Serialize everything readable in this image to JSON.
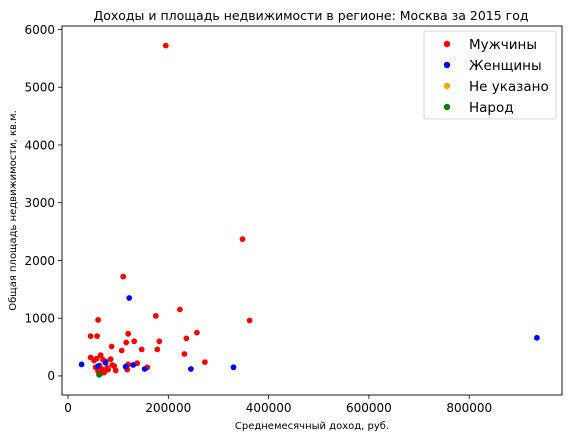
{
  "chart_data": {
    "type": "scatter",
    "title": "Доходы и площадь недвижимости в регионе: Москва за 2015 год",
    "xlabel": "Среднемесячный доход, руб.",
    "ylabel": "Общая площадь недвижимости, кв.м.",
    "xlim": [
      -12000,
      985000
    ],
    "ylim": [
      -330,
      6060
    ],
    "xticks": [
      0,
      200000,
      400000,
      600000,
      800000
    ],
    "xtick_labels": [
      "0",
      "200000",
      "400000",
      "600000",
      "800000"
    ],
    "yticks": [
      0,
      1000,
      2000,
      3000,
      4000,
      5000,
      6000
    ],
    "ytick_labels": [
      "0",
      "1000",
      "2000",
      "3000",
      "4000",
      "5000",
      "6000"
    ],
    "grid": false,
    "legend_position": "top-right",
    "series": [
      {
        "name": "Мужчины",
        "color": "#ff0000",
        "points": [
          [
            195000,
            5720
          ],
          [
            348000,
            2370
          ],
          [
            110000,
            1720
          ],
          [
            223000,
            1150
          ],
          [
            362000,
            960
          ],
          [
            175000,
            1040
          ],
          [
            257000,
            750
          ],
          [
            120000,
            730
          ],
          [
            236000,
            650
          ],
          [
            60000,
            970
          ],
          [
            45000,
            690
          ],
          [
            58000,
            690
          ],
          [
            182000,
            600
          ],
          [
            132000,
            600
          ],
          [
            116000,
            580
          ],
          [
            87000,
            510
          ],
          [
            178000,
            460
          ],
          [
            147000,
            460
          ],
          [
            107000,
            440
          ],
          [
            232000,
            380
          ],
          [
            65000,
            360
          ],
          [
            45000,
            320
          ],
          [
            57000,
            300
          ],
          [
            70000,
            280
          ],
          [
            85000,
            290
          ],
          [
            273000,
            240
          ],
          [
            52000,
            270
          ],
          [
            75000,
            250
          ],
          [
            138000,
            220
          ],
          [
            120000,
            200
          ],
          [
            88000,
            190
          ],
          [
            63000,
            180
          ],
          [
            92000,
            170
          ],
          [
            55000,
            150
          ],
          [
            78000,
            140
          ],
          [
            158000,
            150
          ],
          [
            67000,
            120
          ],
          [
            80000,
            110
          ],
          [
            95000,
            95
          ],
          [
            118000,
            110
          ],
          [
            60000,
            80
          ],
          [
            72000,
            60
          ],
          [
            65000,
            40
          ]
        ]
      },
      {
        "name": "Женщины",
        "color": "#0000ff",
        "points": [
          [
            935000,
            660
          ],
          [
            122000,
            1350
          ],
          [
            330000,
            150
          ],
          [
            245000,
            120
          ],
          [
            153000,
            120
          ],
          [
            27000,
            200
          ],
          [
            75000,
            230
          ],
          [
            130000,
            190
          ],
          [
            115000,
            160
          ],
          [
            60000,
            170
          ]
        ]
      },
      {
        "name": "Не указано",
        "color": "#ffa500",
        "points": []
      },
      {
        "name": "Народ",
        "color": "#008000",
        "points": [
          [
            62000,
            20
          ]
        ]
      }
    ]
  }
}
